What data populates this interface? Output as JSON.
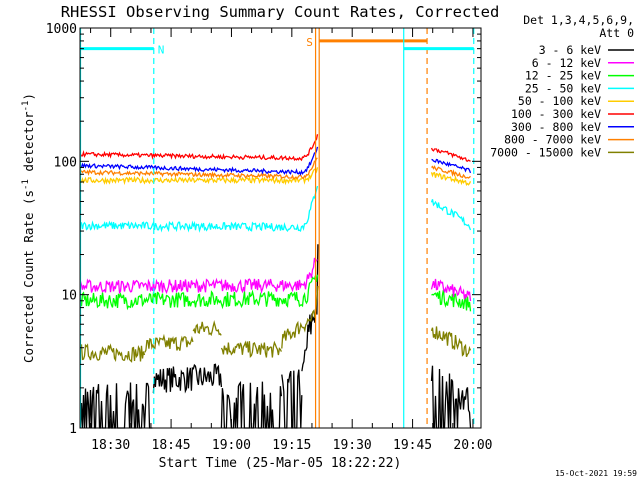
{
  "chart_data": {
    "type": "line",
    "title": "RHESSI Observing Summary Count Rates, Corrected",
    "xlabel": "Start Time (25-Mar-05 18:22:22)",
    "ylabel": "Corrected Count Rate (s",
    "ylabel_sup": "-1",
    "ylabel_tail": " detector",
    "ylabel_sup2": "-1",
    "ylabel_end": ")",
    "yscale": "log",
    "ylim": [
      1,
      1000
    ],
    "y_ticks": [
      {
        "v": 1,
        "label": "1"
      },
      {
        "v": 10,
        "label": "10"
      },
      {
        "v": 100,
        "label": "100"
      },
      {
        "v": 1000,
        "label": "1000"
      }
    ],
    "xlim_min": [
      1102.37,
      1202
    ],
    "x_ticks": [
      {
        "m": 1110,
        "label": "18:30"
      },
      {
        "m": 1125,
        "label": "18:45"
      },
      {
        "m": 1140,
        "label": "19:00"
      },
      {
        "m": 1155,
        "label": "19:15"
      },
      {
        "m": 1170,
        "label": "19:30"
      },
      {
        "m": 1185,
        "label": "19:45"
      },
      {
        "m": 1200,
        "label": "20:00"
      }
    ],
    "legend_header": [
      "Det 1,3,4,5,6,9,",
      "Att 0"
    ],
    "legend_placement": "right",
    "footer": "15-Oct-2021 19:59",
    "series": [
      {
        "name": "3 - 6 keV",
        "color": "#000000",
        "segments": [
          {
            "x": [
              1102.5,
              1120.6
            ],
            "y0": 1.55,
            "y1": 1.6,
            "spike": null,
            "noise": 0.35,
            "lowcut": 1
          },
          {
            "x": [
              1120.6,
              1137.5
            ],
            "y0": 2.3,
            "y1": 2.4,
            "spike": null,
            "noise": 0.1,
            "lowcut": 0
          },
          {
            "x": [
              1137.5,
              1152.5
            ],
            "y0": 1.55,
            "y1": 1.6,
            "spike": null,
            "noise": 0.35,
            "lowcut": 1
          },
          {
            "x": [
              1152.5,
              1157.5
            ],
            "y0": 1.8,
            "y1": 2.0,
            "spike": null,
            "noise": 0.35,
            "lowcut": 1
          },
          {
            "x": [
              1157.5,
              1161.5
            ],
            "y0": 2.0,
            "y1": 9.0,
            "spike": 20,
            "noise": 0.15,
            "lowcut": 0
          },
          {
            "x": [
              1189.7,
              1199.6
            ],
            "y0": 2.2,
            "y1": 1.4,
            "spike": null,
            "noise": 0.35,
            "lowcut": 1
          }
        ]
      },
      {
        "name": "6 - 12 keV",
        "color": "#ff00ff",
        "segments": [
          {
            "x": [
              1102.5,
              1161.5
            ],
            "y0": 11.5,
            "y1": 11.8,
            "spike": 20,
            "noise": 0.05,
            "lowcut": 0
          },
          {
            "x": [
              1189.7,
              1199.6
            ],
            "y0": 12.0,
            "y1": 9.5,
            "spike": null,
            "noise": 0.05,
            "lowcut": 0
          }
        ]
      },
      {
        "name": "12 - 25 keV",
        "color": "#00ff00",
        "segments": [
          {
            "x": [
              1102.5,
              1161.5
            ],
            "y0": 9.0,
            "y1": 9.4,
            "spike": 15,
            "noise": 0.06,
            "lowcut": 0
          },
          {
            "x": [
              1189.7,
              1199.6
            ],
            "y0": 10.0,
            "y1": 8.5,
            "spike": null,
            "noise": 0.06,
            "lowcut": 0
          }
        ]
      },
      {
        "name": "25 - 50 keV",
        "color": "#00ffff",
        "segments": [
          {
            "x": [
              1102.5,
              1161.5
            ],
            "y0": 33,
            "y1": 32,
            "spike": 70,
            "noise": 0.03,
            "lowcut": 0
          },
          {
            "x": [
              1189.7,
              1199.6
            ],
            "y0": 50,
            "y1": 32,
            "spike": null,
            "noise": 0.03,
            "lowcut": 0
          }
        ]
      },
      {
        "name": "50 - 100 keV",
        "color": "#ffcc00",
        "segments": [
          {
            "x": [
              1102.5,
              1161.5
            ],
            "y0": 72,
            "y1": 72,
            "spike": 90,
            "noise": 0.02,
            "lowcut": 0
          },
          {
            "x": [
              1189.7,
              1199.6
            ],
            "y0": 80,
            "y1": 68,
            "spike": null,
            "noise": 0.02,
            "lowcut": 0
          }
        ]
      },
      {
        "name": "100 - 300 keV",
        "color": "#ff0000",
        "segments": [
          {
            "x": [
              1102.5,
              1161.5
            ],
            "y0": 113,
            "y1": 105,
            "spike": 160,
            "noise": 0.015,
            "lowcut": 0
          },
          {
            "x": [
              1189.7,
              1199.6
            ],
            "y0": 125,
            "y1": 100,
            "spike": null,
            "noise": 0.015,
            "lowcut": 0
          }
        ]
      },
      {
        "name": "300 - 800 keV",
        "color": "#0000ff",
        "segments": [
          {
            "x": [
              1102.5,
              1161.5
            ],
            "y0": 93,
            "y1": 82,
            "spike": 130,
            "noise": 0.015,
            "lowcut": 0
          },
          {
            "x": [
              1189.7,
              1199.6
            ],
            "y0": 103,
            "y1": 84,
            "spike": null,
            "noise": 0.015,
            "lowcut": 0
          }
        ]
      },
      {
        "name": "800 - 7000 keV",
        "color": "#ff8000",
        "segments": [
          {
            "x": [
              1102.5,
              1161.5
            ],
            "y0": 83,
            "y1": 76,
            "spike": 110,
            "noise": 0.015,
            "lowcut": 0
          },
          {
            "x": [
              1189.7,
              1199.6
            ],
            "y0": 90,
            "y1": 75,
            "spike": null,
            "noise": 0.015,
            "lowcut": 0
          }
        ]
      },
      {
        "name": "7000 - 15000 keV",
        "color": "#808000",
        "segments": [
          {
            "x": [
              1102.5,
              1118.5
            ],
            "y0": 3.7,
            "y1": 3.6,
            "spike": null,
            "noise": 0.06,
            "lowcut": 0
          },
          {
            "x": [
              1118.5,
              1130.5
            ],
            "y0": 4.2,
            "y1": 4.4,
            "spike": null,
            "noise": 0.06,
            "lowcut": 0
          },
          {
            "x": [
              1130.5,
              1137.5
            ],
            "y0": 5.5,
            "y1": 5.6,
            "spike": null,
            "noise": 0.06,
            "lowcut": 0
          },
          {
            "x": [
              1137.5,
              1152.5
            ],
            "y0": 4.0,
            "y1": 3.8,
            "spike": null,
            "noise": 0.06,
            "lowcut": 0
          },
          {
            "x": [
              1152.5,
              1161.5
            ],
            "y0": 4.5,
            "y1": 7.0,
            "spike": 12,
            "noise": 0.06,
            "lowcut": 0
          },
          {
            "x": [
              1189.7,
              1199.6
            ],
            "y0": 5.5,
            "y1": 3.6,
            "spike": null,
            "noise": 0.06,
            "lowcut": 0
          }
        ]
      }
    ],
    "annotations": [
      {
        "label": "N",
        "color": "#00ffff",
        "x0": 1102.5,
        "x1": 1120.7,
        "y": 700,
        "lines": [
          {
            "x": 1102.5,
            "dash": false
          },
          {
            "x": 1120.7,
            "dash": true
          }
        ]
      },
      {
        "label": "S",
        "color": "#ff8000",
        "x0": 1161.8,
        "x1": 1188.6,
        "y": 800,
        "lines": [
          {
            "x": 1161.8,
            "dash": false
          },
          {
            "x": 1188.6,
            "dash": true
          }
        ]
      },
      {
        "label": "",
        "color": "#00ffff",
        "x0": 1182.8,
        "x1": 1200.2,
        "y": 700,
        "lines": [
          {
            "x": 1182.8,
            "dash": false
          },
          {
            "x": 1200.2,
            "dash": true
          }
        ]
      },
      {
        "label": "",
        "color": "#ff8000",
        "x0": 1160.9,
        "x1": 1160.9,
        "y": 800,
        "lines": [
          {
            "x": 1160.9,
            "dash": false
          }
        ]
      }
    ]
  }
}
